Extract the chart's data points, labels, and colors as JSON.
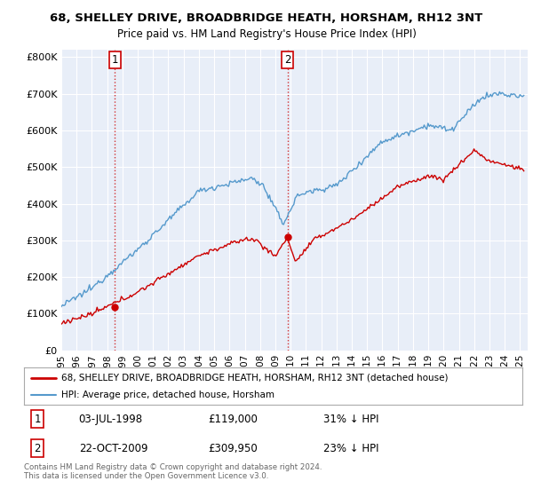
{
  "title": "68, SHELLEY DRIVE, BROADBRIDGE HEATH, HORSHAM, RH12 3NT",
  "subtitle": "Price paid vs. HM Land Registry's House Price Index (HPI)",
  "red_line_label": "68, SHELLEY DRIVE, BROADBRIDGE HEATH, HORSHAM, RH12 3NT (detached house)",
  "blue_line_label": "HPI: Average price, detached house, Horsham",
  "annotation1_date": "03-JUL-1998",
  "annotation1_price": "£119,000",
  "annotation1_hpi": "31% ↓ HPI",
  "annotation2_date": "22-OCT-2009",
  "annotation2_price": "£309,950",
  "annotation2_hpi": "23% ↓ HPI",
  "footer": "Contains HM Land Registry data © Crown copyright and database right 2024.\nThis data is licensed under the Open Government Licence v3.0.",
  "ylim": [
    0,
    820000
  ],
  "yticks": [
    0,
    100000,
    200000,
    300000,
    400000,
    500000,
    600000,
    700000,
    800000
  ],
  "ytick_labels": [
    "£0",
    "£100K",
    "£200K",
    "£300K",
    "£400K",
    "£500K",
    "£600K",
    "£700K",
    "£800K"
  ],
  "red_color": "#cc0000",
  "blue_color": "#5599cc",
  "annotation_color": "#cc0000",
  "plot_bg": "#e8eef8",
  "fig_bg": "#ffffff",
  "sale1_year": 1998.5,
  "sale1_price": 119000,
  "sale2_year": 2009.79,
  "sale2_price": 309950
}
